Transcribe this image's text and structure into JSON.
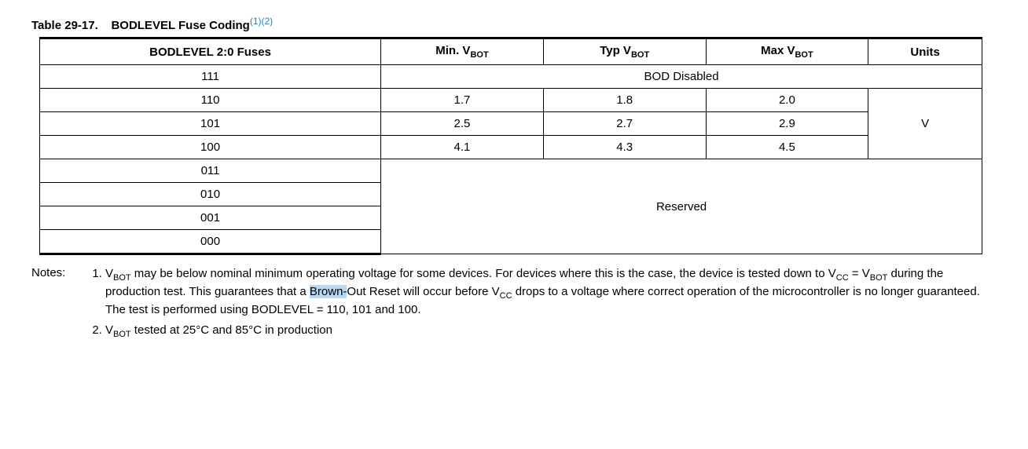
{
  "caption": {
    "label": "Table 29-17.",
    "title": "BODLEVEL Fuse Coding",
    "refs": "(1)(2)"
  },
  "headers": {
    "fuses": "BODLEVEL 2:0 Fuses",
    "min_pre": "Min. V",
    "min_sub": "BOT",
    "typ_pre": "Typ V",
    "typ_sub": "BOT",
    "max_pre": "Max V",
    "max_sub": "BOT",
    "units": "Units"
  },
  "rows": {
    "r0_fuse": "111",
    "r0_span": "BOD Disabled",
    "r1_fuse": "110",
    "r1_min": "1.7",
    "r1_typ": "1.8",
    "r1_max": "2.0",
    "r2_fuse": "101",
    "r2_min": "2.5",
    "r2_typ": "2.7",
    "r2_max": "2.9",
    "r3_fuse": "100",
    "r3_min": "4.1",
    "r3_typ": "4.3",
    "r3_max": "4.5",
    "r4_fuse": "011",
    "r5_fuse": "010",
    "r6_fuse": "001",
    "r7_fuse": "000",
    "reserved": "Reserved",
    "units_v": "V"
  },
  "notes": {
    "label": "Notes:",
    "n1_a": "V",
    "n1_a_sub": "BOT",
    "n1_b": " may be below nominal minimum operating voltage for some devices. For devices where this is the case, the device is tested down to V",
    "n1_c_sub": "CC",
    "n1_d": " = V",
    "n1_e_sub": "BOT",
    "n1_f": " during the production test. This guarantees that a ",
    "n1_hl": "Brown-",
    "n1_g": "Out Reset will occur before V",
    "n1_h_sub": "CC",
    "n1_i": " drops to a voltage where correct operation of the microcontroller is no longer guaranteed. The test is performed using BODLEVEL = 110, 101 and 100.",
    "n2_a": "V",
    "n2_a_sub": "BOT",
    "n2_b": " tested at 25°C and 85°C in production"
  },
  "colwidths": {
    "c0": 420,
    "c1": 200,
    "c2": 200,
    "c3": 200,
    "c4": 140
  }
}
